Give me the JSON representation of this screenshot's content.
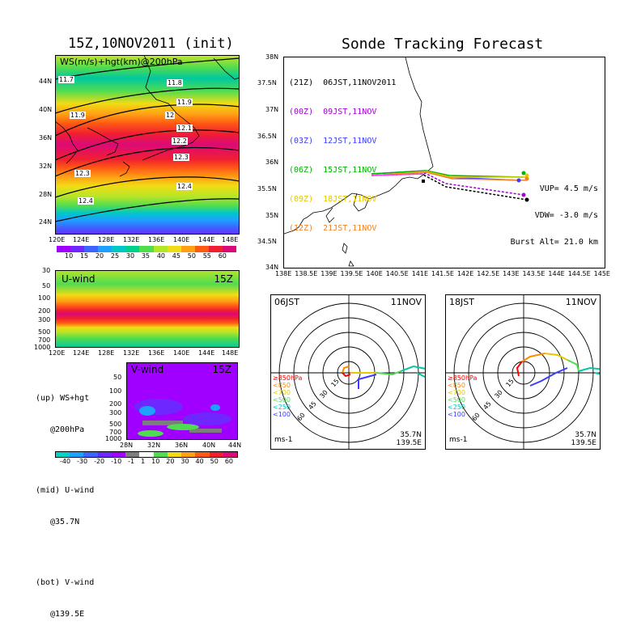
{
  "left_title": "15Z,10NOV2011 (init)",
  "right_title": "Sonde Tracking Forecast",
  "panel_ws": {
    "label": "WS(m/s)+hgt(km)@200hPa",
    "lat_labels": [
      "44N",
      "40N",
      "36N",
      "32N",
      "28N",
      "24N"
    ],
    "lon_labels": [
      "120E",
      "124E",
      "128E",
      "132E",
      "136E",
      "140E",
      "144E",
      "148E"
    ],
    "contour_labels": [
      "11.7",
      "11.8",
      "11.9",
      "11.9",
      "12",
      "12.1",
      "12.2",
      "12.3",
      "12.3",
      "12.4",
      "12.4"
    ],
    "colorbar": [
      "10",
      "15",
      "20",
      "25",
      "30",
      "35",
      "40",
      "45",
      "50",
      "55",
      "60"
    ],
    "colorbar_colors": [
      "#a000ff",
      "#6e28ff",
      "#3c64ff",
      "#1ea0ff",
      "#00c8c8",
      "#00d28c",
      "#50dc50",
      "#b4e628",
      "#f0dc14",
      "#ffa014",
      "#ff5a14",
      "#f01e32",
      "#dc0a78"
    ]
  },
  "panel_u": {
    "label": "U-wind",
    "time": "15Z",
    "p_labels": [
      "30",
      "50",
      "100",
      "200",
      "300",
      "500",
      "700",
      "1000"
    ],
    "lon_labels": [
      "120E",
      "124E",
      "128E",
      "132E",
      "136E",
      "140E",
      "144E",
      "148E"
    ]
  },
  "panel_v": {
    "label": "V-wind",
    "time": "15Z",
    "p_labels": [
      "50",
      "100",
      "200",
      "300",
      "500",
      "700",
      "1000"
    ],
    "lat_labels": [
      "28N",
      "32N",
      "36N",
      "40N",
      "44N"
    ],
    "colorbar": [
      "-40",
      "-30",
      "-20",
      "-10",
      "-1",
      "1",
      "10",
      "20",
      "30",
      "40",
      "50",
      "60"
    ],
    "colorbar_colors": [
      "#00d2c8",
      "#1ea0ff",
      "#3c64ff",
      "#6e28ff",
      "#a000ff",
      "#7d7d7d",
      "#ffffff",
      "#50dc50",
      "#f0dc14",
      "#ffa014",
      "#ff5a14",
      "#f01e32",
      "#dc0a78"
    ]
  },
  "legend_notes": {
    "up": "(up) WS+hgt",
    "up2": "@200hPa",
    "mid": "(mid) U-wind",
    "mid2": "@35.7N",
    "bot": "(bot) V-wind",
    "bot2": "@139.5E"
  },
  "track_map": {
    "lat_labels": [
      "38N",
      "37.5N",
      "37N",
      "36.5N",
      "36N",
      "35.5N",
      "35N",
      "34.5N",
      "34N"
    ],
    "lon_labels": [
      "138E",
      "138.5E",
      "139E",
      "139.5E",
      "140E",
      "140.5E",
      "141E",
      "141.5E",
      "142E",
      "142.5E",
      "143E",
      "143.5E",
      "144E",
      "144.5E",
      "145E"
    ],
    "runs": [
      {
        "label": "(21Z)  06JST,11NOV2011",
        "color": "#000000"
      },
      {
        "label": "(00Z)  09JST,11NOV",
        "color": "#a000d2"
      },
      {
        "label": "(03Z)  12JST,11NOV",
        "color": "#3c3cff"
      },
      {
        "label": "(06Z)  15JST,11NOV",
        "color": "#00b400"
      },
      {
        "label": "(09Z)  18JST,11NOV",
        "color": "#e6c800"
      },
      {
        "label": "(12Z)  21JST,11NOV",
        "color": "#f08228"
      }
    ],
    "vup": "VUP= 4.5 m/s",
    "vdw": "VDW= -3.0 m/s",
    "burst": "Burst Alt= 21.0 km"
  },
  "hodo_06": {
    "time": "06JST",
    "date": "11NOV",
    "lat": "35.7N",
    "lon": "139.5E",
    "unit": "ms-1",
    "ring_labels": [
      "15",
      "30",
      "45",
      "60"
    ]
  },
  "hodo_18": {
    "time": "18JST",
    "date": "11NOV",
    "lat": "35.7N",
    "lon": "139.5E",
    "unit": "ms-1",
    "ring_labels": [
      "15",
      "30",
      "45",
      "60"
    ]
  },
  "hodo_legend": [
    {
      "label": "≥850hPa",
      "color": "#ff0000"
    },
    {
      "label": "<850",
      "color": "#ff8c00"
    },
    {
      "label": "<700",
      "color": "#e6c800"
    },
    {
      "label": "<500",
      "color": "#50dc50"
    },
    {
      "label": "<250",
      "color": "#00c8c8"
    },
    {
      "label": "<100",
      "color": "#3c3cff"
    }
  ]
}
